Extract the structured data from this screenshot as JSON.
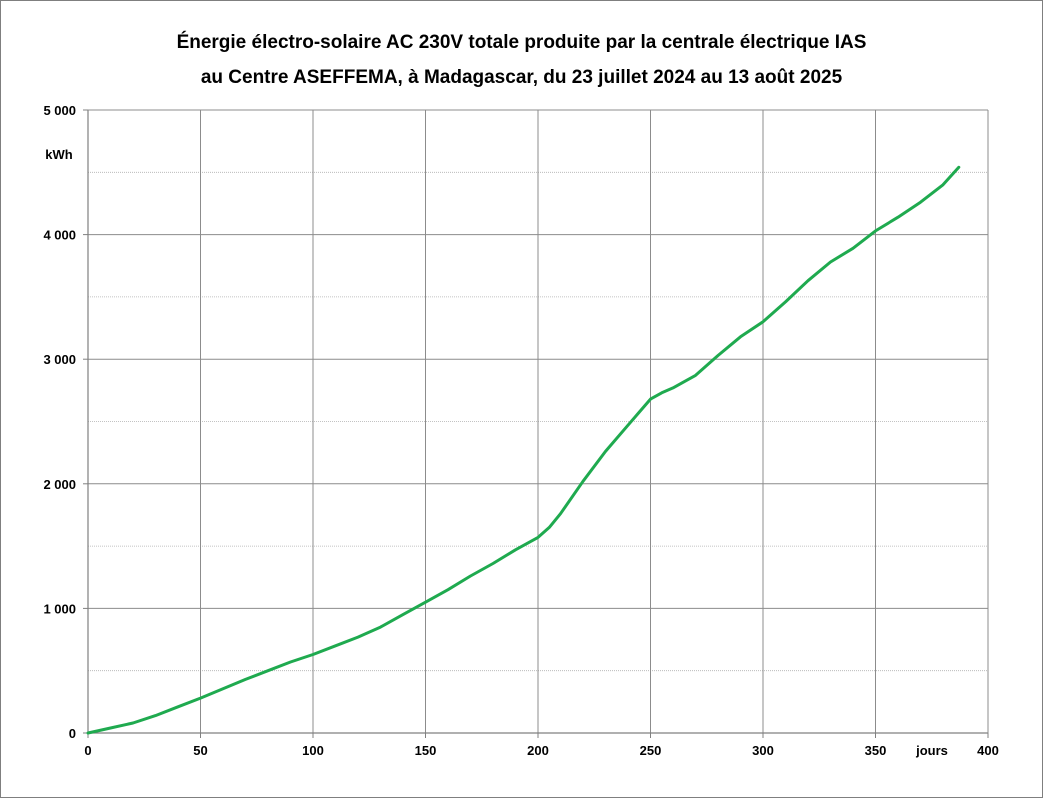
{
  "chart_data": {
    "type": "line",
    "title": "Énergie électro-solaire AC 230V totale produite par la centrale électrique IAS",
    "subtitle": "au Centre ASEFFEMA, à Madagascar, du 23 juillet 2024 au 13 août 2025",
    "xlabel": "jours",
    "ylabel": "kWh",
    "xlim": [
      0,
      400
    ],
    "ylim": [
      0,
      5000
    ],
    "x_ticks": [
      0,
      50,
      100,
      150,
      200,
      250,
      300,
      350,
      400
    ],
    "y_ticks": [
      0,
      1000,
      2000,
      3000,
      4000,
      5000
    ],
    "x_tick_labels": [
      "0",
      "50",
      "100",
      "150",
      "200",
      "250",
      "300",
      "350",
      "400"
    ],
    "y_tick_labels": [
      "0",
      "1 000",
      "2 000",
      "3 000",
      "4 000",
      "5 000"
    ],
    "grid": true,
    "legend": "none",
    "line_color": "#1faa4f",
    "series": [
      {
        "x": [
          0,
          5,
          10,
          20,
          30,
          40,
          50,
          60,
          70,
          80,
          90,
          100,
          110,
          120,
          130,
          140,
          150,
          160,
          170,
          180,
          190,
          200,
          205,
          210,
          220,
          230,
          240,
          250,
          255,
          260,
          270,
          280,
          290,
          300,
          310,
          320,
          330,
          340,
          350,
          360,
          370,
          380,
          387
        ],
        "y": [
          0,
          20,
          40,
          80,
          140,
          210,
          280,
          355,
          430,
          500,
          570,
          630,
          700,
          770,
          850,
          950,
          1050,
          1150,
          1260,
          1360,
          1470,
          1570,
          1650,
          1760,
          2020,
          2260,
          2470,
          2680,
          2730,
          2770,
          2870,
          3030,
          3180,
          3300,
          3460,
          3630,
          3780,
          3890,
          4030,
          4140,
          4260,
          4400,
          4540
        ]
      }
    ]
  }
}
